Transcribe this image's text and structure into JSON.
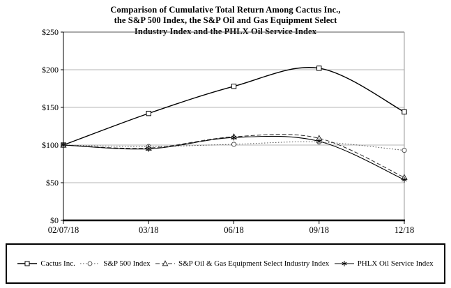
{
  "title": "Comparison of Cumulative Total Return Among Cactus Inc.,\nthe S&P 500 Index, the S&P Oil and Gas Equipment Select\nIndustry Index and the PHLX Oil Service Index",
  "colors": {
    "axis": "#000000",
    "grid": "#b5b5b5",
    "plot_border_top": "#555555",
    "plot_border_right": "#999999",
    "background": "#ffffff"
  },
  "chart_data": {
    "type": "line",
    "title": "Comparison of Cumulative Total Return Among Cactus Inc., the S&P 500 Index, the S&P Oil and Gas Equipment Select Industry Index and the PHLX Oil Service Index",
    "x_labels": [
      "02/07/18",
      "03/18",
      "06/18",
      "09/18",
      "12/18"
    ],
    "series": [
      {
        "name": "Cactus Inc.",
        "values": [
          100,
          142,
          178,
          202,
          144
        ],
        "marker": "square",
        "line": "solid",
        "color": "#000000",
        "width": 1.4
      },
      {
        "name": "S&P 500 Index",
        "values": [
          100,
          98,
          101,
          104,
          93
        ],
        "marker": "circle",
        "line": "dotted",
        "color": "#555555",
        "width": 1.0
      },
      {
        "name": "S&P Oil & Gas Equipment Select Industry Index",
        "values": [
          100,
          96,
          111,
          109,
          57
        ],
        "marker": "triangle",
        "line": "dashed",
        "color": "#2a2a2a",
        "width": 1.0
      },
      {
        "name": "PHLX Oil Service Index",
        "values": [
          100,
          95,
          110,
          105,
          54
        ],
        "marker": "asterisk",
        "line": "solid",
        "color": "#000000",
        "width": 1.1
      }
    ],
    "ylim": [
      0,
      250
    ],
    "ytick_step": 50,
    "ytick_labels": [
      "$0",
      "$50",
      "$100",
      "$150",
      "$200",
      "$250"
    ],
    "grid": true,
    "smooth_lines": true,
    "legend_position": "bottom"
  }
}
